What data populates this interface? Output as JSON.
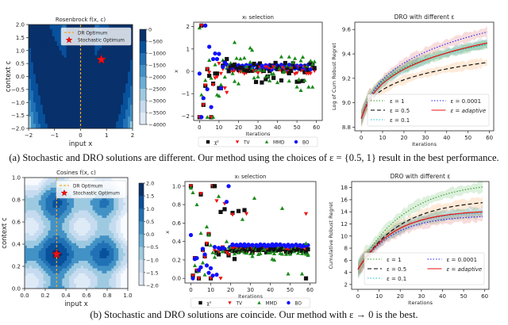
{
  "captions": {
    "a": "(a) Stochastic and DRO solutions are different. Our method using the choices of ε = {0.5, 1} result in the best performance.",
    "b": "(b) Stochastic and DRO solutions are coincide. Our method with ε → 0 is the best."
  },
  "chart_data": [
    {
      "id": "rosenbrock",
      "type": "heatmap",
      "title": "Rosenbrock f(x, c)",
      "xlabel": "input x",
      "ylabel": "context c",
      "xlim": [
        -2,
        2
      ],
      "ylim": [
        -2,
        2
      ],
      "xticks": [
        "−2",
        "−1",
        "0",
        "1",
        "2"
      ],
      "yticks": [
        "−2.0",
        "−1.5",
        "−1.0",
        "−0.5",
        "0.0",
        "0.5",
        "1.0",
        "1.5",
        "2.0"
      ],
      "colorbar": {
        "min": -4000,
        "max": 0,
        "ticks": [
          "0",
          "−500",
          "−1000",
          "−1500",
          "−2000",
          "−2500",
          "−3000",
          "−3500",
          "−4000"
        ]
      },
      "dr_optimum_x": 0,
      "stochastic_optimum": [
        0.8,
        0.65
      ],
      "legend": [
        "DR Optimum",
        "Stochastic Optimum"
      ]
    },
    {
      "id": "xt-top",
      "type": "scatter",
      "title": "x_t selection",
      "xlabel": "Iterations",
      "ylabel": "x",
      "xlim": [
        -3,
        63
      ],
      "ylim": [
        -2.2,
        2.2
      ],
      "xticks": [
        "0",
        "10",
        "20",
        "30",
        "40",
        "50",
        "60"
      ],
      "yticks": [
        "−2",
        "−1",
        "0",
        "1",
        "2"
      ],
      "legend": [
        "χ²",
        "TV",
        "MMD",
        "BO"
      ]
    },
    {
      "id": "dro-top",
      "type": "line",
      "title": "DRO with different ε",
      "xlabel": "Iterations",
      "ylabel": "Log of Cum Robust Regret",
      "xlim": [
        -3,
        62
      ],
      "ylim": [
        8.77,
        9.66
      ],
      "xticks": [
        "0",
        "10",
        "20",
        "30",
        "40",
        "50",
        "60"
      ],
      "yticks": [
        "8.8",
        "9.0",
        "9.2",
        "9.4",
        "9.6"
      ],
      "legend": [
        "ε = 1",
        "ε = 0.5",
        "ε = 0.1",
        "ε = 0.0001",
        "ε = adaptive"
      ]
    },
    {
      "id": "cosines",
      "type": "heatmap",
      "title": "Cosines f(x, c)",
      "xlabel": "input x",
      "ylabel": "context c",
      "xlim": [
        0,
        1
      ],
      "ylim": [
        0,
        1
      ],
      "xticks": [
        "0.0",
        "0.2",
        "0.4",
        "0.6",
        "0.8",
        "1.0"
      ],
      "yticks": [
        "0.0",
        "0.2",
        "0.4",
        "0.6",
        "0.8",
        "1.0"
      ],
      "colorbar": {
        "min": -2,
        "max": 2,
        "ticks": [
          "2.0",
          "1.5",
          "1.0",
          "0.5",
          "0.0",
          "−0.5",
          "−1.0",
          "−1.5",
          "−2.0"
        ]
      },
      "dr_optimum_x": 0.31,
      "stochastic_optimum": [
        0.31,
        0.31
      ],
      "legend": [
        "DR Optimum",
        "Stochastic Optimum"
      ]
    },
    {
      "id": "xt-bottom",
      "type": "scatter",
      "title": "x_t selection",
      "xlabel": "Iterations",
      "ylabel": "x",
      "xlim": [
        -3,
        63
      ],
      "ylim": [
        -0.05,
        1.05
      ],
      "xticks": [
        "0",
        "10",
        "20",
        "30",
        "40",
        "50",
        "60"
      ],
      "yticks": [
        "0.0",
        "0.2",
        "0.4",
        "0.6",
        "0.8",
        "1.0"
      ],
      "legend": [
        "χ²",
        "TV",
        "MMD",
        "BO"
      ]
    },
    {
      "id": "dro-bottom",
      "type": "line",
      "title": "DRO with different ε",
      "xlabel": "Iterations",
      "ylabel": "Cumulative Robust Regret",
      "xlim": [
        -3,
        62
      ],
      "ylim": [
        1.2,
        19
      ],
      "xticks": [
        "0",
        "10",
        "20",
        "30",
        "40",
        "50",
        "60"
      ],
      "yticks": [
        "2",
        "4",
        "6",
        "8",
        "10",
        "12",
        "14",
        "16",
        "18"
      ],
      "legend": [
        "ε = 1",
        "ε = 0.5",
        "ε = 0.1",
        "ε = 0.0001",
        "ε = adaptive"
      ]
    }
  ],
  "series_styles": {
    "eps1": {
      "color": "#2ca02c",
      "dash": "1.5,2"
    },
    "eps05": {
      "color": "#000000",
      "dash": "5,3"
    },
    "eps01": {
      "color": "#17becf",
      "dash": "1.5,2"
    },
    "eps00001": {
      "color": "#1f1fff",
      "dash": "1.5,2"
    },
    "adaptive": {
      "color": "#ee1111",
      "dash": ""
    }
  },
  "scatter_colors": {
    "chi2": "#111111",
    "tv": "#ee1111",
    "mmd": "#1a8a1a",
    "bo": "#1010ff"
  },
  "dro_top_endpoints": {
    "eps1": [
      8.87,
      9.48
    ],
    "eps05": [
      8.87,
      9.33
    ],
    "eps01": [
      8.87,
      9.48
    ],
    "eps00001": [
      8.87,
      9.58
    ],
    "adaptive": [
      8.87,
      9.49
    ]
  },
  "dro_bottom_endpoints": {
    "eps1": [
      4.5,
      18.1
    ],
    "eps05": [
      4.5,
      15.5
    ],
    "eps01": [
      4.5,
      13.8
    ],
    "eps00001": [
      4.5,
      13.2
    ],
    "adaptive": [
      4.5,
      14.0
    ]
  }
}
